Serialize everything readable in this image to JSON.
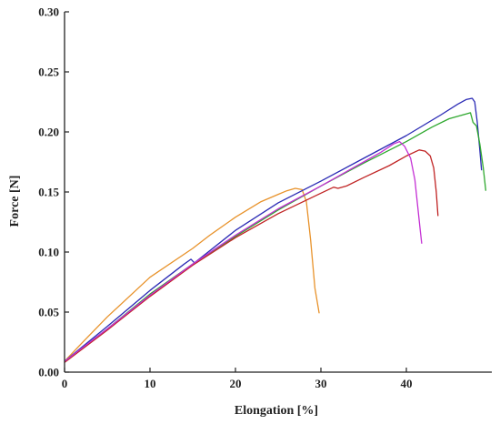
{
  "chart_data": {
    "type": "line",
    "title": "",
    "xlabel": "Elongation [%]",
    "ylabel": "Force [N]",
    "xlim": [
      0,
      50
    ],
    "ylim": [
      0,
      0.3
    ],
    "grid": false,
    "legend": "none",
    "x_ticks": [
      {
        "value": 0,
        "label": "0"
      },
      {
        "value": 10,
        "label": "10"
      },
      {
        "value": 20,
        "label": "20"
      },
      {
        "value": 30,
        "label": "30"
      },
      {
        "value": 40,
        "label": "40"
      }
    ],
    "y_ticks": [
      {
        "value": 0.0,
        "label": "0.00"
      },
      {
        "value": 0.05,
        "label": "0.05"
      },
      {
        "value": 0.1,
        "label": "0.10"
      },
      {
        "value": 0.15,
        "label": "0.15"
      },
      {
        "value": 0.2,
        "label": "0.20"
      },
      {
        "value": 0.25,
        "label": "0.25"
      },
      {
        "value": 0.3,
        "label": "0.30"
      }
    ],
    "series": [
      {
        "color": "#e8922a",
        "points": [
          [
            0,
            0.009
          ],
          [
            2,
            0.024
          ],
          [
            5,
            0.046
          ],
          [
            10,
            0.079
          ],
          [
            15,
            0.103
          ],
          [
            17,
            0.114
          ],
          [
            20,
            0.129
          ],
          [
            23,
            0.142
          ],
          [
            25,
            0.148
          ],
          [
            26,
            0.151
          ],
          [
            27,
            0.153
          ],
          [
            27.8,
            0.152
          ],
          [
            28.3,
            0.142
          ],
          [
            28.8,
            0.11
          ],
          [
            29.3,
            0.07
          ],
          [
            29.8,
            0.049
          ]
        ]
      },
      {
        "color": "#2b2bb5",
        "points": [
          [
            0,
            0.009
          ],
          [
            5,
            0.038
          ],
          [
            10,
            0.068
          ],
          [
            14,
            0.09
          ],
          [
            14.8,
            0.094
          ],
          [
            15.2,
            0.091
          ],
          [
            20,
            0.118
          ],
          [
            25,
            0.141
          ],
          [
            30,
            0.159
          ],
          [
            35,
            0.178
          ],
          [
            40,
            0.197
          ],
          [
            44,
            0.214
          ],
          [
            46,
            0.223
          ],
          [
            47,
            0.227
          ],
          [
            47.7,
            0.228
          ],
          [
            48,
            0.225
          ],
          [
            48.3,
            0.208
          ],
          [
            48.6,
            0.185
          ],
          [
            48.8,
            0.168
          ]
        ]
      },
      {
        "color": "#2ea82e",
        "points": [
          [
            0,
            0.009
          ],
          [
            5,
            0.036
          ],
          [
            10,
            0.065
          ],
          [
            15,
            0.09
          ],
          [
            20,
            0.113
          ],
          [
            25,
            0.135
          ],
          [
            30,
            0.155
          ],
          [
            35,
            0.174
          ],
          [
            40,
            0.192
          ],
          [
            43,
            0.204
          ],
          [
            45,
            0.211
          ],
          [
            47,
            0.215
          ],
          [
            47.5,
            0.216
          ],
          [
            47.8,
            0.208
          ],
          [
            48.2,
            0.205
          ],
          [
            48.6,
            0.19
          ],
          [
            49,
            0.17
          ],
          [
            49.3,
            0.151
          ]
        ]
      },
      {
        "color": "#c02424",
        "points": [
          [
            0,
            0.008
          ],
          [
            5,
            0.035
          ],
          [
            10,
            0.063
          ],
          [
            15,
            0.089
          ],
          [
            20,
            0.112
          ],
          [
            25,
            0.132
          ],
          [
            30,
            0.149
          ],
          [
            31.5,
            0.154
          ],
          [
            32,
            0.153
          ],
          [
            33,
            0.155
          ],
          [
            35,
            0.162
          ],
          [
            38,
            0.172
          ],
          [
            40,
            0.18
          ],
          [
            41.5,
            0.185
          ],
          [
            42.2,
            0.184
          ],
          [
            42.8,
            0.18
          ],
          [
            43.2,
            0.17
          ],
          [
            43.5,
            0.15
          ],
          [
            43.7,
            0.13
          ]
        ]
      },
      {
        "color": "#c430d4",
        "points": [
          [
            0,
            0.009
          ],
          [
            5,
            0.036
          ],
          [
            10,
            0.064
          ],
          [
            15,
            0.09
          ],
          [
            20,
            0.114
          ],
          [
            25,
            0.136
          ],
          [
            30,
            0.155
          ],
          [
            35,
            0.175
          ],
          [
            37,
            0.183
          ],
          [
            38.5,
            0.19
          ],
          [
            39.2,
            0.192
          ],
          [
            39.8,
            0.188
          ],
          [
            40.5,
            0.178
          ],
          [
            41,
            0.16
          ],
          [
            41.3,
            0.14
          ],
          [
            41.6,
            0.12
          ],
          [
            41.8,
            0.107
          ]
        ]
      }
    ]
  }
}
